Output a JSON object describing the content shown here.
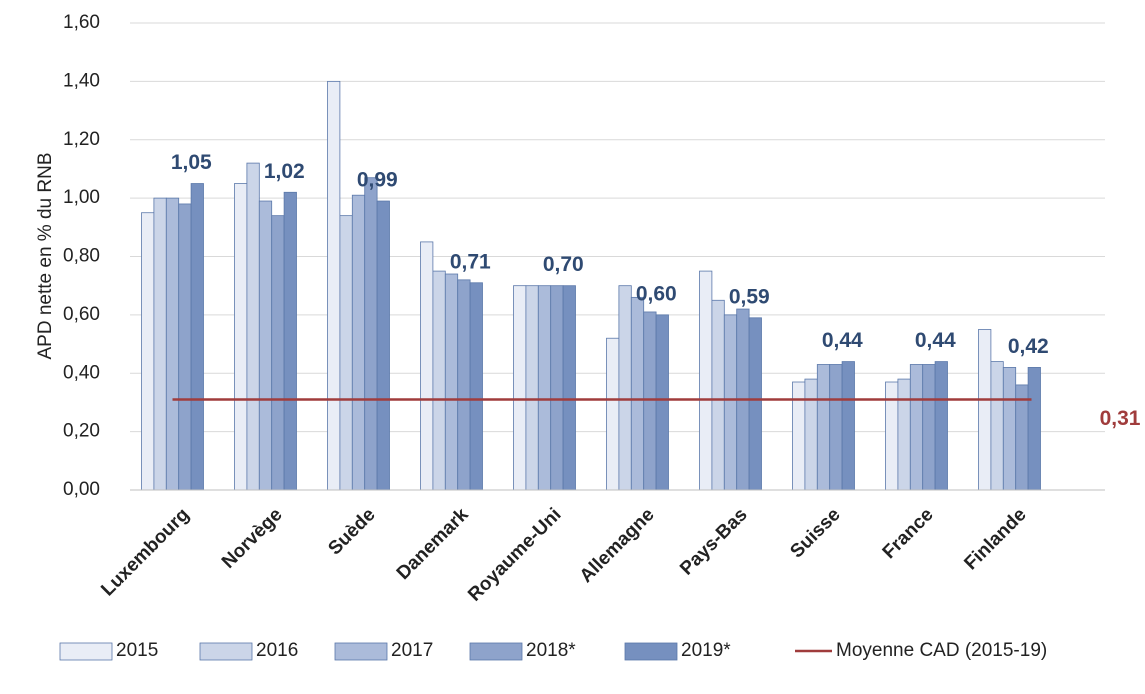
{
  "chart_data": {
    "type": "bar",
    "y_label": "APD nette en % du RNB",
    "categories": [
      "Luxembourg",
      "Norvège",
      "Suède",
      "Danemark",
      "Royaume-Uni",
      "Allemagne",
      "Pays-Bas",
      "Suisse",
      "France",
      "Finlande"
    ],
    "series": [
      {
        "name": "2015",
        "color": "#e9edf6",
        "values": [
          0.95,
          1.05,
          1.4,
          0.85,
          0.7,
          0.52,
          0.75,
          0.37,
          0.37,
          0.55
        ]
      },
      {
        "name": "2016",
        "color": "#cbd5e8",
        "values": [
          1.0,
          1.12,
          0.94,
          0.75,
          0.7,
          0.7,
          0.65,
          0.38,
          0.38,
          0.44
        ]
      },
      {
        "name": "2017",
        "color": "#abbbda",
        "values": [
          1.0,
          0.99,
          1.01,
          0.74,
          0.7,
          0.66,
          0.6,
          0.43,
          0.43,
          0.42
        ]
      },
      {
        "name": "2018*",
        "color": "#8ea3cb",
        "values": [
          0.98,
          0.94,
          1.07,
          0.72,
          0.7,
          0.61,
          0.62,
          0.43,
          0.43,
          0.36
        ]
      },
      {
        "name": "2019*",
        "color": "#7690bf",
        "values": [
          1.05,
          1.02,
          0.99,
          0.71,
          0.7,
          0.6,
          0.59,
          0.44,
          0.44,
          0.42
        ],
        "value_labels": [
          "1,05",
          "1,02",
          "0,99",
          "0,71",
          "0,70",
          "0,60",
          "0,59",
          "0,44",
          "0,44",
          "0,42"
        ]
      }
    ],
    "lines": [
      {
        "name": "Moyenne CAD (2015-19)",
        "color": "#a03c3c",
        "value": 0.31,
        "value_label": "0,31"
      }
    ],
    "ylim": [
      0,
      1.6
    ],
    "yticks": [
      {
        "value": 0,
        "label": "0,00"
      },
      {
        "value": 0.2,
        "label": "0,20"
      },
      {
        "value": 0.4,
        "label": "0,40"
      },
      {
        "value": 0.6,
        "label": "0,60"
      },
      {
        "value": 0.8,
        "label": "0,80"
      },
      {
        "value": 1.0,
        "label": "1,00"
      },
      {
        "value": 1.2,
        "label": "1,20"
      },
      {
        "value": 1.4,
        "label": "1,40"
      },
      {
        "value": 1.6,
        "label": "1,60"
      }
    ],
    "grid": true,
    "legend": "bottom",
    "label_color": "#2f4a72"
  }
}
